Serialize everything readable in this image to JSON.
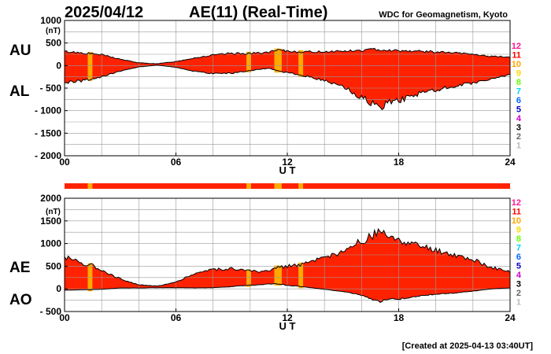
{
  "header": {
    "date": "2025/04/12",
    "title": "AE(11) (Real-Time)",
    "source": "WDC for Geomagnetism, Kyoto"
  },
  "footer": {
    "created": "[Created at 2025-04-13 03:40UT]"
  },
  "colors": {
    "fill": "#ff2200",
    "quality_orange": "#ffaa00",
    "axis": "#000000",
    "grid": "#999999"
  },
  "station_legend": [
    {
      "label": "12",
      "color": "#ff1493"
    },
    {
      "label": "11",
      "color": "#ff0000"
    },
    {
      "label": "10",
      "color": "#ffa500"
    },
    {
      "label": "9",
      "color": "#ffd700"
    },
    {
      "label": "8",
      "color": "#66ff00"
    },
    {
      "label": "7",
      "color": "#00d2ff"
    },
    {
      "label": "6",
      "color": "#0066ff"
    },
    {
      "label": "5",
      "color": "#0000cc"
    },
    {
      "label": "4",
      "color": "#cc00cc"
    },
    {
      "label": "3",
      "color": "#000000"
    },
    {
      "label": "2",
      "color": "#666666"
    },
    {
      "label": "1",
      "color": "#bbbbbb"
    }
  ],
  "chart_data": [
    {
      "type": "area",
      "panel": "AU/AL",
      "label_upper": "AU",
      "label_lower": "AL",
      "unit": "(nT)",
      "xlabel": "U T",
      "xlim": [
        0,
        24
      ],
      "xticks": [
        "00",
        "06",
        "12",
        "18",
        "24"
      ],
      "ylim": [
        -2000,
        1000
      ],
      "yticks": [
        "1000",
        "500",
        "0",
        "- 500",
        "- 1000",
        "- 1500",
        "- 2000"
      ],
      "grid": true,
      "quality_highlight_hours": [
        [
          1.25,
          1.5
        ],
        [
          9.8,
          10.05
        ],
        [
          11.3,
          11.7
        ],
        [
          12.6,
          12.85
        ]
      ],
      "series": [
        {
          "name": "AU",
          "x": [
            0,
            1,
            2,
            3,
            4,
            5,
            6,
            7,
            8,
            9,
            10,
            11,
            11.5,
            12,
            13,
            14,
            15,
            16,
            16.5,
            17,
            17.5,
            18,
            19,
            20,
            21,
            22,
            23,
            24
          ],
          "values": [
            310,
            280,
            240,
            140,
            60,
            40,
            90,
            170,
            230,
            270,
            270,
            290,
            340,
            320,
            300,
            310,
            320,
            330,
            360,
            350,
            340,
            330,
            320,
            300,
            280,
            250,
            200,
            190
          ]
        },
        {
          "name": "AL",
          "x": [
            0,
            1,
            2,
            3,
            4,
            5,
            6,
            7,
            8,
            9,
            10,
            11,
            11.5,
            12,
            13,
            14,
            15,
            15.5,
            16,
            16.5,
            17,
            17.5,
            18,
            18.5,
            19,
            20,
            21,
            22,
            23,
            24
          ],
          "values": [
            -380,
            -330,
            -260,
            -120,
            -30,
            10,
            -40,
            -130,
            -180,
            -170,
            -110,
            -60,
            -120,
            -160,
            -230,
            -330,
            -450,
            -600,
            -700,
            -820,
            -940,
            -800,
            -780,
            -700,
            -640,
            -540,
            -460,
            -380,
            -280,
            -200
          ]
        }
      ]
    },
    {
      "type": "area",
      "panel": "AE/AO",
      "label_upper": "AE",
      "label_lower": "AO",
      "unit": "(nT)",
      "xlabel": "U T",
      "xlim": [
        0,
        24
      ],
      "xticks": [
        "00",
        "06",
        "12",
        "18",
        "24"
      ],
      "ylim": [
        -500,
        2000
      ],
      "yticks": [
        "2000",
        "1500",
        "1000",
        "500",
        "0",
        "- 500"
      ],
      "grid": true,
      "quality_highlight_hours": [
        [
          1.25,
          1.5
        ],
        [
          9.8,
          10.05
        ],
        [
          11.3,
          11.7
        ],
        [
          12.6,
          12.85
        ]
      ],
      "series": [
        {
          "name": "AE",
          "x": [
            0,
            0.5,
            1,
            1.5,
            2,
            3,
            4,
            5,
            6,
            7,
            8,
            9,
            10,
            11,
            11.5,
            12,
            13,
            14,
            15,
            15.5,
            16,
            16.5,
            17,
            17.5,
            18,
            18.5,
            19,
            20,
            21,
            22,
            23,
            24
          ],
          "values": [
            700,
            650,
            560,
            520,
            420,
            220,
            90,
            60,
            150,
            340,
            430,
            450,
            390,
            380,
            480,
            500,
            560,
            680,
            800,
            950,
            1050,
            1150,
            1280,
            1100,
            1080,
            1000,
            950,
            850,
            740,
            640,
            470,
            370
          ]
        },
        {
          "name": "AO",
          "x": [
            0,
            1,
            2,
            3,
            4,
            5,
            6,
            7,
            8,
            9,
            10,
            11,
            11.5,
            12,
            13,
            14,
            15,
            16,
            16.5,
            17,
            17.5,
            18,
            19,
            20,
            21,
            22,
            23,
            24
          ],
          "values": [
            -30,
            -20,
            -10,
            20,
            20,
            25,
            25,
            20,
            25,
            50,
            80,
            110,
            110,
            80,
            40,
            -10,
            -60,
            -140,
            -230,
            -280,
            -230,
            -220,
            -160,
            -120,
            -90,
            -50,
            0,
            20
          ]
        }
      ]
    }
  ]
}
